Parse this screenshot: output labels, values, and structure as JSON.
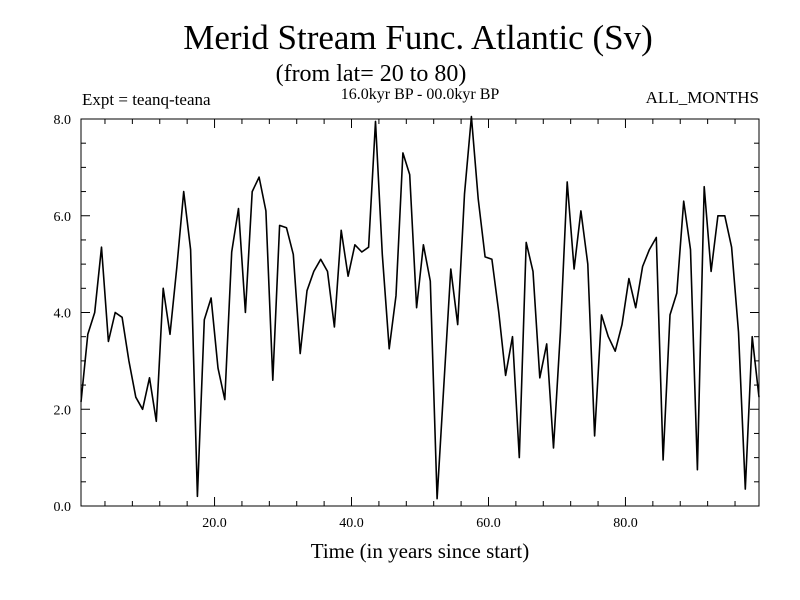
{
  "chart_data": {
    "type": "line",
    "title": "Merid Stream Func. Atlantic (Sv)",
    "subtitle": "(from lat= 20 to 80)",
    "experiment": "Expt = teanq-teana",
    "period": "16.0kyr BP - 00.0kyr BP",
    "months": "ALL_MONTHS",
    "xlabel": "Time (in years since start)",
    "ylabel": "",
    "xlim": [
      0.5,
      99.5
    ],
    "ylim": [
      0,
      8
    ],
    "xticks": [
      20,
      40,
      60,
      80
    ],
    "xtick_labels": [
      "20.0",
      "40.0",
      "60.0",
      "80.0"
    ],
    "yticks": [
      0,
      2,
      4,
      6,
      8
    ],
    "ytick_labels": [
      "0.0",
      "2.0",
      "4.0",
      "6.0",
      "8.0"
    ],
    "grid": false,
    "series": [
      {
        "name": "Merid Stream Func. Atlantic",
        "color": "#000000",
        "x": [
          0.5,
          1.5,
          2.5,
          3.5,
          4.5,
          5.5,
          6.5,
          7.5,
          8.5,
          9.5,
          10.5,
          11.5,
          12.5,
          13.5,
          14.5,
          15.5,
          16.5,
          17.5,
          18.5,
          19.5,
          20.5,
          21.5,
          22.5,
          23.5,
          24.5,
          25.5,
          26.5,
          27.5,
          28.5,
          29.5,
          30.5,
          31.5,
          32.5,
          33.5,
          34.5,
          35.5,
          36.5,
          37.5,
          38.5,
          39.5,
          40.5,
          41.5,
          42.5,
          43.5,
          44.5,
          45.5,
          46.5,
          47.5,
          48.5,
          49.5,
          50.5,
          51.5,
          52.5,
          53.5,
          54.5,
          55.5,
          56.5,
          57.5,
          58.5,
          59.5,
          60.5,
          61.5,
          62.5,
          63.5,
          64.5,
          65.5,
          66.5,
          67.5,
          68.5,
          69.5,
          70.5,
          71.5,
          72.5,
          73.5,
          74.5,
          75.5,
          76.5,
          77.5,
          78.5,
          79.5,
          80.5,
          81.5,
          82.5,
          83.5,
          84.5,
          85.5,
          86.5,
          87.5,
          88.5,
          89.5,
          90.5,
          91.5,
          92.5,
          93.5,
          94.5,
          95.5,
          96.5,
          97.5,
          98.5,
          99.5
        ],
        "values": [
          2.15,
          3.55,
          4.0,
          5.35,
          3.4,
          4.0,
          3.9,
          3.0,
          2.25,
          2.0,
          2.65,
          1.75,
          4.5,
          3.55,
          4.95,
          6.5,
          5.3,
          0.2,
          3.85,
          4.3,
          2.85,
          2.2,
          5.25,
          6.15,
          4.0,
          6.5,
          6.8,
          6.1,
          2.6,
          5.8,
          5.75,
          5.2,
          3.15,
          4.45,
          4.85,
          5.1,
          4.85,
          3.7,
          5.7,
          4.75,
          5.4,
          5.25,
          5.35,
          7.95,
          5.2,
          3.25,
          4.35,
          7.3,
          6.85,
          4.1,
          5.4,
          4.65,
          0.15,
          2.55,
          4.9,
          3.75,
          6.45,
          8.05,
          6.35,
          5.15,
          5.1,
          4.0,
          2.7,
          3.5,
          1.0,
          5.45,
          4.85,
          2.65,
          3.35,
          1.2,
          3.6,
          6.7,
          4.9,
          6.1,
          5.0,
          1.45,
          3.95,
          3.5,
          3.2,
          3.75,
          4.7,
          4.1,
          4.95,
          5.3,
          5.55,
          0.95,
          3.95,
          4.4,
          6.3,
          5.3,
          0.75,
          6.6,
          4.85,
          6.0,
          6.0,
          5.35,
          3.6,
          0.35,
          3.5,
          2.25
        ]
      }
    ]
  }
}
